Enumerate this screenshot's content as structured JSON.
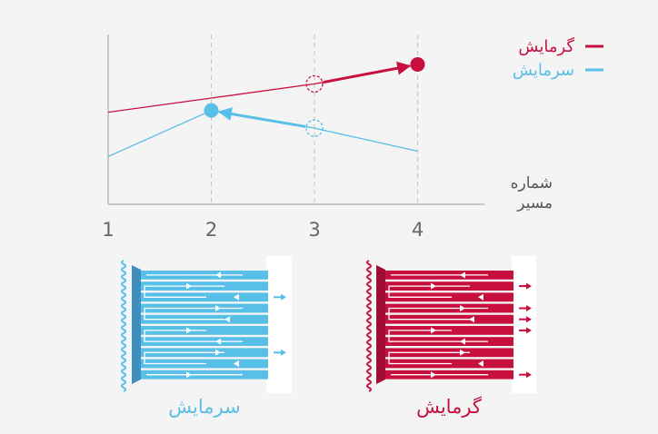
{
  "colors": {
    "heating": "#c8103e",
    "cooling": "#58bfe8",
    "axis": "#c8c8c8",
    "grid": "#c8c8c8",
    "text": "#666666"
  },
  "legend": [
    {
      "label": "گرمایش",
      "color": "#c8103e"
    },
    {
      "label": "سرمایش",
      "color": "#58bfe8"
    }
  ],
  "axis_title_lines": [
    "شماره",
    "مسیر"
  ],
  "captions": {
    "cooling": "سرمایش",
    "heating": "گرمایش"
  },
  "chart_data": {
    "type": "line",
    "x": [
      1,
      2,
      3,
      4
    ],
    "xlim": [
      1,
      4.65
    ],
    "tick_labels": [
      "1",
      "2",
      "3",
      "4"
    ],
    "grid": "vertical-dashed",
    "legend_position": "top-right",
    "series": [
      {
        "name": "گرمایش",
        "color": "#c8103e",
        "values": [
          0.52,
          0.6,
          0.68,
          0.79
        ],
        "highlight": {
          "from_x": 3,
          "to_x": 4,
          "arrow": "toward 4",
          "open_point": 3,
          "filled_point": 4
        }
      },
      {
        "name": "سرمایش",
        "color": "#58bfe8",
        "values": [
          0.27,
          0.53,
          0.43,
          0.3
        ],
        "highlight": {
          "from_x": 3,
          "to_x": 2,
          "arrow": "toward 2",
          "open_point": 3,
          "filled_point": 2
        }
      }
    ]
  }
}
